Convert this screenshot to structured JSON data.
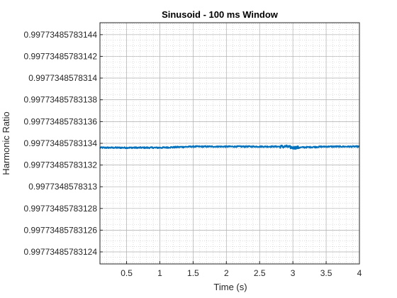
{
  "chart_data": {
    "type": "line",
    "title": "Sinusoid - 100 ms Window",
    "xlabel": "Time (s)",
    "ylabel": "Harmonic Ratio",
    "xlim": [
      0.1,
      4.0
    ],
    "ylim": [
      0.997734857831229,
      0.997734857831451
    ],
    "xticks": [
      0.5,
      1,
      1.5,
      2,
      2.5,
      3,
      3.5,
      4
    ],
    "xtick_labels": [
      "0.5",
      "1",
      "1.5",
      "2",
      "2.5",
      "3",
      "3.5",
      "4"
    ],
    "yticks": [
      0.99773485783144,
      0.99773485783142,
      0.9977348578314,
      0.99773485783138,
      0.99773485783136,
      0.99773485783134,
      0.99773485783132,
      0.9977348578313,
      0.99773485783128,
      0.99773485783126,
      0.99773485783124
    ],
    "ytick_labels": [
      "0.99773485783144",
      "0.99773485783142",
      "0.9977348578314",
      "0.99773485783138",
      "0.99773485783136",
      "0.99773485783134",
      "0.99773485783132",
      "0.9977348578313",
      "0.99773485783128",
      "0.99773485783126",
      "0.99773485783124"
    ],
    "grid": true,
    "minor_grid": true,
    "series": [
      {
        "color": "#0072bd",
        "x": [
          0.1,
          0.5,
          1.0,
          1.5,
          2.0,
          2.5,
          2.9,
          3.0,
          3.5,
          4.0
        ],
        "y": [
          0.997734857831336,
          0.997734857831336,
          0.997734857831336,
          0.997734857831337,
          0.997734857831337,
          0.997734857831337,
          0.997734857831337,
          0.997734857831336,
          0.997734857831337,
          0.997734857831337
        ]
      }
    ]
  }
}
